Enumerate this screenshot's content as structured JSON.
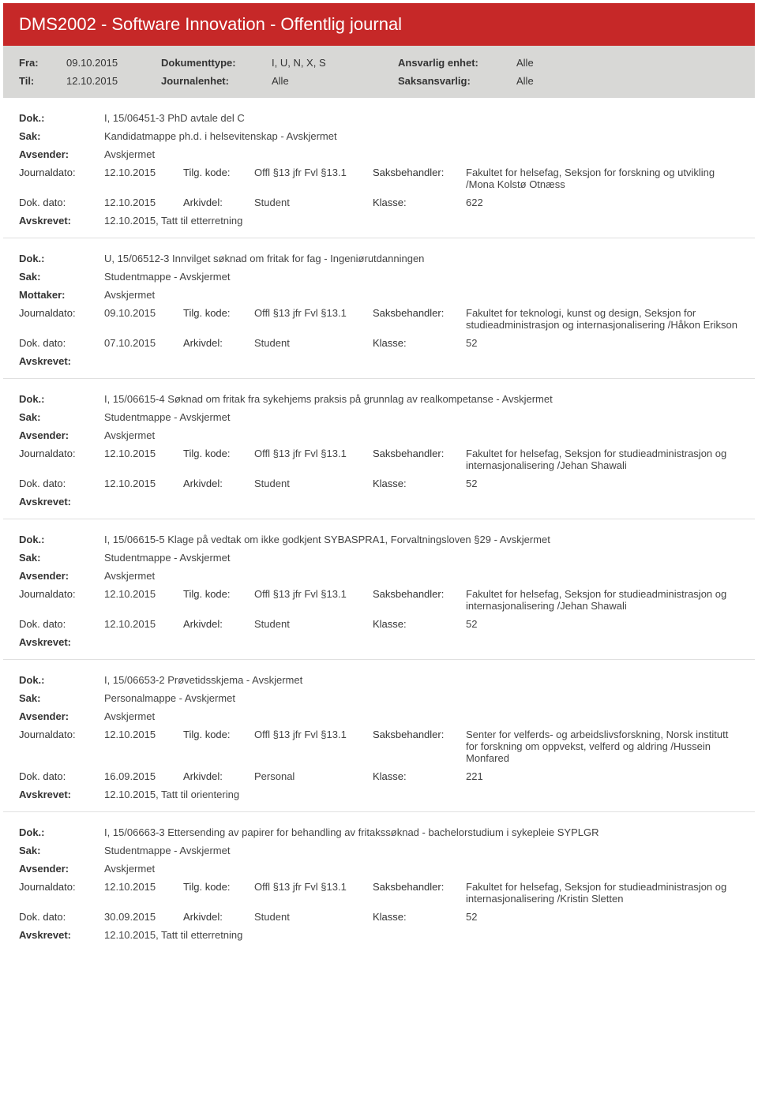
{
  "header": {
    "title": "DMS2002 - Software Innovation - Offentlig journal"
  },
  "filter": {
    "fra_label": "Fra:",
    "fra": "09.10.2015",
    "til_label": "Til:",
    "til": "12.10.2015",
    "doktype_label": "Dokumenttype:",
    "doktype": "I, U, N, X, S",
    "journalenhet_label": "Journalenhet:",
    "journalenhet": "Alle",
    "ansvarlig_label": "Ansvarlig enhet:",
    "ansvarlig": "Alle",
    "saks_label": "Saksansvarlig:",
    "saks": "Alle"
  },
  "labels": {
    "dok": "Dok.:",
    "sak": "Sak:",
    "avsender": "Avsender:",
    "mottaker": "Mottaker:",
    "journaldato": "Journaldato:",
    "tilgkode": "Tilg. kode:",
    "saksbehandler": "Saksbehandler:",
    "dokdato": "Dok. dato:",
    "arkivdel": "Arkivdel:",
    "klasse": "Klasse:",
    "avskrevet": "Avskrevet:"
  },
  "entries": [
    {
      "dok": "I, 15/06451-3 PhD avtale del C",
      "sak": "Kandidatmappe ph.d. i helsevitenskap - Avskjermet",
      "party_label": "Avsender:",
      "party": "Avskjermet",
      "journaldato": "12.10.2015",
      "tilgkode": "Offl §13 jfr Fvl §13.1",
      "saksbehandler": "Fakultet for helsefag, Seksjon for forskning og utvikling /Mona Kolstø Otnæss",
      "dokdato": "12.10.2015",
      "arkivdel": "Student",
      "klasse": "622",
      "avskrevet": "12.10.2015, Tatt til etterretning"
    },
    {
      "dok": "U, 15/06512-3 Innvilget søknad om fritak for fag - Ingeniørutdanningen",
      "sak": "Studentmappe - Avskjermet",
      "party_label": "Mottaker:",
      "party": "Avskjermet",
      "journaldato": "09.10.2015",
      "tilgkode": "Offl §13 jfr Fvl §13.1",
      "saksbehandler": "Fakultet for teknologi, kunst og design, Seksjon for studieadministrasjon og internasjonalisering /Håkon Erikson",
      "dokdato": "07.10.2015",
      "arkivdel": "Student",
      "klasse": "52",
      "avskrevet": ""
    },
    {
      "dok": "I, 15/06615-4 Søknad om fritak fra sykehjems praksis på grunnlag av realkompetanse - Avskjermet",
      "sak": "Studentmappe - Avskjermet",
      "party_label": "Avsender:",
      "party": "Avskjermet",
      "journaldato": "12.10.2015",
      "tilgkode": "Offl §13 jfr Fvl §13.1",
      "saksbehandler": "Fakultet for helsefag, Seksjon for studieadministrasjon og internasjonalisering /Jehan Shawali",
      "dokdato": "12.10.2015",
      "arkivdel": "Student",
      "klasse": "52",
      "avskrevet": ""
    },
    {
      "dok": "I, 15/06615-5 Klage på vedtak om ikke godkjent SYBASPRA1, Forvaltningsloven §29 - Avskjermet",
      "sak": "Studentmappe - Avskjermet",
      "party_label": "Avsender:",
      "party": "Avskjermet",
      "journaldato": "12.10.2015",
      "tilgkode": "Offl §13 jfr Fvl §13.1",
      "saksbehandler": "Fakultet for helsefag, Seksjon for studieadministrasjon og internasjonalisering /Jehan Shawali",
      "dokdato": "12.10.2015",
      "arkivdel": "Student",
      "klasse": "52",
      "avskrevet": ""
    },
    {
      "dok": "I, 15/06653-2 Prøvetidsskjema - Avskjermet",
      "sak": "Personalmappe - Avskjermet",
      "party_label": "Avsender:",
      "party": "Avskjermet",
      "journaldato": "12.10.2015",
      "tilgkode": "Offl §13 jfr Fvl §13.1",
      "saksbehandler": "Senter for velferds- og arbeidslivsforskning,  Norsk institutt for forskning om oppvekst, velferd og aldring /Hussein Monfared",
      "dokdato": "16.09.2015",
      "arkivdel": "Personal",
      "klasse": "221",
      "avskrevet": "12.10.2015, Tatt til orientering"
    },
    {
      "dok": "I, 15/06663-3 Ettersending av papirer for behandling av fritakssøknad - bachelorstudium i sykepleie SYPLGR",
      "sak": "Studentmappe - Avskjermet",
      "party_label": "Avsender:",
      "party": "Avskjermet",
      "journaldato": "12.10.2015",
      "tilgkode": "Offl §13 jfr Fvl §13.1",
      "saksbehandler": "Fakultet for helsefag, Seksjon for studieadministrasjon og internasjonalisering /Kristin Sletten",
      "dokdato": "30.09.2015",
      "arkivdel": "Student",
      "klasse": "52",
      "avskrevet": "12.10.2015, Tatt til etterretning"
    }
  ]
}
